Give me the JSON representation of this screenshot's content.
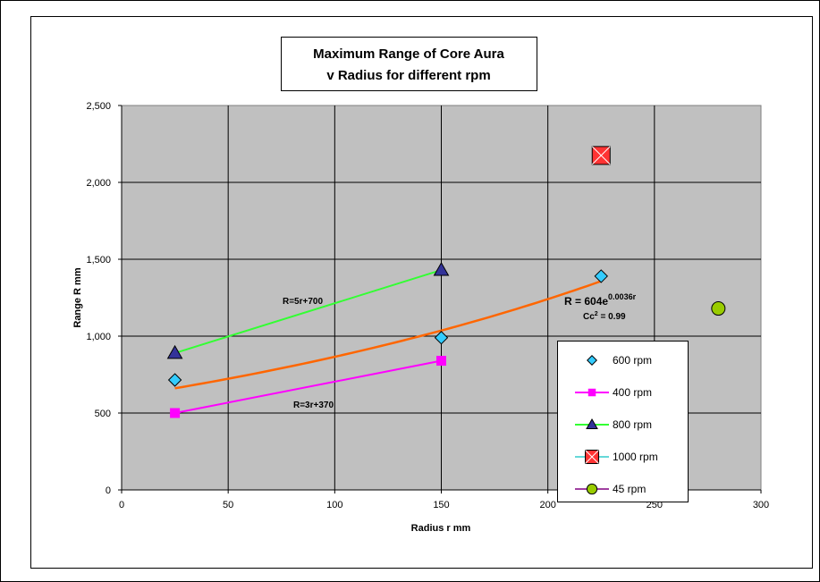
{
  "chart_data": {
    "type": "scatter",
    "title_lines": [
      "Maximum Range of Core Aura",
      "v Radius for different rpm"
    ],
    "xlabel": "Radius  r  mm",
    "ylabel": "Range  R  mm",
    "xlim": [
      0,
      300
    ],
    "ylim": [
      0,
      2500
    ],
    "x_ticks": [
      0,
      50,
      100,
      150,
      200,
      250,
      300
    ],
    "x_tick_labels": [
      "0",
      "50",
      "100",
      "150",
      "200",
      "250",
      "300"
    ],
    "y_ticks": [
      0,
      500,
      1000,
      1500,
      2000,
      2500
    ],
    "y_tick_labels": [
      "0",
      "500",
      "1,000",
      "1,500",
      "2,000",
      "2,500"
    ],
    "grid": true,
    "legend_position": "bottom-right",
    "series": [
      {
        "name": "600 rpm",
        "marker": "diamond",
        "color": "#33CCFF",
        "line": false,
        "points": [
          [
            25,
            715
          ],
          [
            150,
            990
          ],
          [
            225,
            1390
          ]
        ]
      },
      {
        "name": "400 rpm",
        "marker": "square",
        "color": "#FF00FF",
        "line": true,
        "line_color": "#FF00FF",
        "points": [
          [
            25,
            500
          ],
          [
            150,
            840
          ]
        ]
      },
      {
        "name": "800  rpm",
        "marker": "triangle",
        "color": "#333399",
        "line": true,
        "line_color": "#33FF33",
        "points": [
          [
            25,
            890
          ],
          [
            150,
            1430
          ]
        ]
      },
      {
        "name": "1000  rpm",
        "marker": "xsquare",
        "color": "#FF3333",
        "line": false,
        "points": [
          [
            225,
            2175
          ]
        ]
      },
      {
        "name": "45 rpm",
        "marker": "circle",
        "color": "#99CC00",
        "line": false,
        "points": [
          [
            280,
            1180
          ]
        ]
      }
    ],
    "trendline": {
      "type": "exponential",
      "color": "#FF6600",
      "coefficient": 604,
      "rate": 0.0036,
      "x_range": [
        25,
        225
      ]
    },
    "annotations": {
      "eq_800": "R=5r+700",
      "eq_400": "R=3r+370",
      "eq_exp_main": "R = 604e",
      "eq_exp_exp": "0.0036r",
      "cc_main": "Cc",
      "cc_sup": "2",
      "cc_value": " = 0.99"
    }
  }
}
